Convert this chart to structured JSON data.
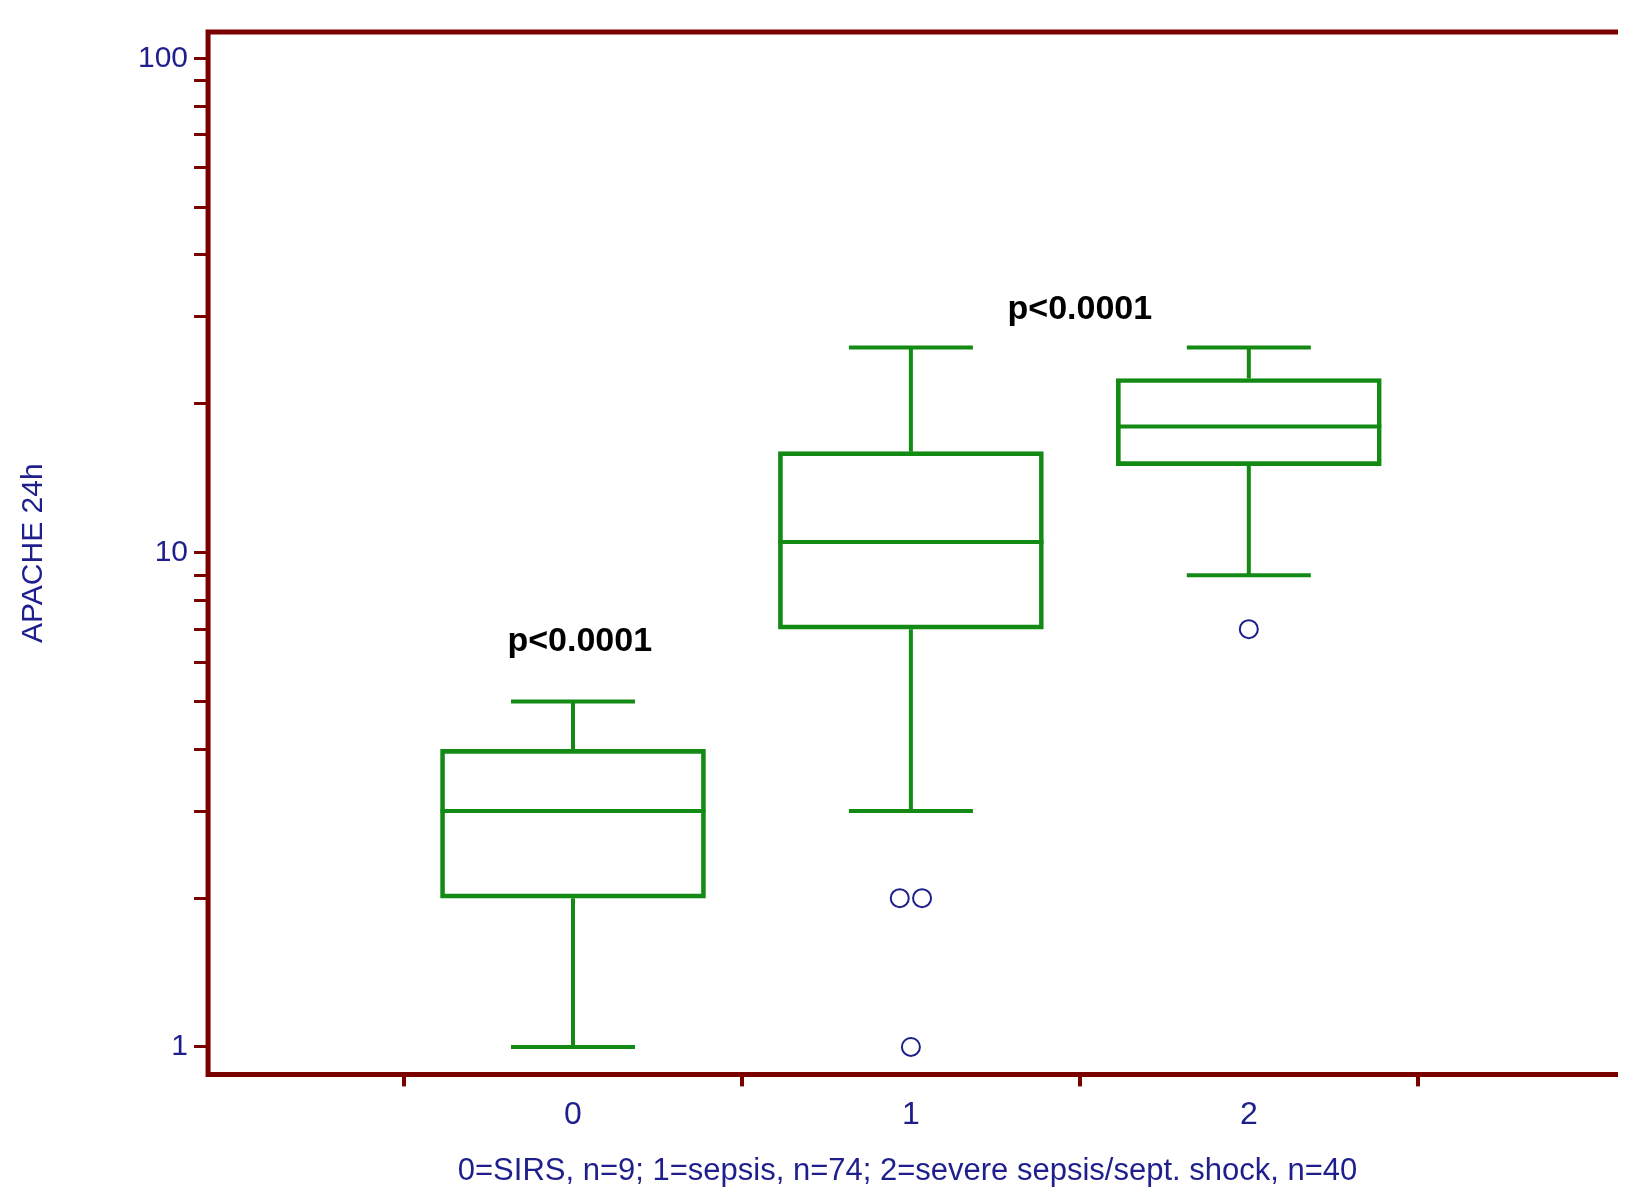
{
  "chart_data": {
    "type": "box",
    "xlabel": "0=SIRS, n=9; 1=sepsis, n=74; 2=severe sepsis/sept. shock, n=40",
    "ylabel": "APACHE 24h",
    "categories": [
      "0",
      "1",
      "2"
    ],
    "series": [
      {
        "color": "#138a13",
        "boxes": [
          {
            "low": 1,
            "q1": 2,
            "median": 3,
            "q3": 4,
            "high": 5
          },
          {
            "low": 3,
            "q1": 7,
            "median": 10.5,
            "q3": 16,
            "high": 26,
            "outliers": [
              2,
              2,
              1
            ]
          },
          {
            "low": 9,
            "q1": 15,
            "median": 18,
            "q3": 22.5,
            "high": 26,
            "outliers": [
              7
            ]
          }
        ]
      }
    ],
    "log": "y",
    "ylim": [
      0.88,
      113
    ],
    "yticks": [
      1,
      {
        "value": 2,
        "label": null
      },
      {
        "value": 3,
        "label": null
      },
      {
        "value": 4,
        "label": null
      },
      {
        "value": 5,
        "label": null
      },
      {
        "value": 6,
        "label": null
      },
      {
        "value": 7,
        "label": null
      },
      {
        "value": 8,
        "label": null
      },
      {
        "value": 9,
        "label": null
      },
      10,
      {
        "value": 20,
        "label": null
      },
      {
        "value": 30,
        "label": null
      },
      {
        "value": 40,
        "label": null
      },
      {
        "value": 50,
        "label": null
      },
      {
        "value": 60,
        "label": null
      },
      {
        "value": 70,
        "label": null
      },
      {
        "value": 80,
        "label": null
      },
      {
        "value": 90,
        "label": null
      },
      100
    ],
    "grid": false,
    "legend": false,
    "annotations": [
      "p<0.0001",
      "p<0.0001"
    ]
  }
}
